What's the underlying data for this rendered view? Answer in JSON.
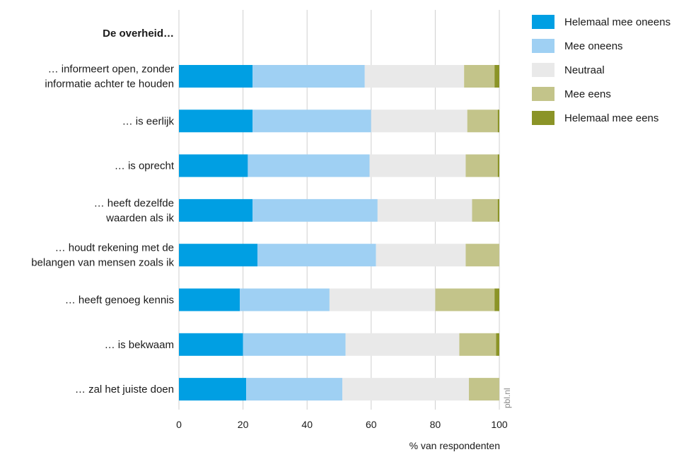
{
  "chart_data": {
    "type": "bar",
    "orientation": "horizontal",
    "stacked": true,
    "group_title": "De overheid…",
    "categories": [
      [
        "… informeert open, zonder",
        "informatie achter te houden"
      ],
      [
        "… is eerlijk"
      ],
      [
        "… is oprecht"
      ],
      [
        "… heeft dezelfde",
        "waarden als ik"
      ],
      [
        "… houdt rekening met de",
        "belangen van mensen zoals ik"
      ],
      [
        "… heeft genoeg kennis"
      ],
      [
        "… is bekwaam"
      ],
      [
        "… zal het juiste doen"
      ]
    ],
    "series": [
      {
        "name": "Helemaal mee oneens",
        "color": "#009fe3",
        "values": [
          23,
          23,
          21.5,
          23,
          24.5,
          19,
          20,
          21
        ]
      },
      {
        "name": "Mee oneens",
        "color": "#9fd0f3",
        "values": [
          35,
          37,
          38,
          39,
          37,
          28,
          32,
          30
        ]
      },
      {
        "name": "Neutraal",
        "color": "#e9e9e9",
        "values": [
          31,
          30,
          30,
          29.5,
          28,
          33,
          35.5,
          39.5
        ]
      },
      {
        "name": "Mee eens",
        "color": "#c3c48a",
        "values": [
          9.5,
          9.5,
          10,
          8,
          10.5,
          18.5,
          11.5,
          9.5
        ]
      },
      {
        "name": "Helemaal mee eens",
        "color": "#8b9427",
        "values": [
          1.5,
          0.5,
          0.5,
          0.5,
          0,
          1.5,
          1,
          0
        ]
      }
    ],
    "xlim": [
      0,
      100
    ],
    "xticks": [
      0,
      20,
      40,
      60,
      80,
      100
    ],
    "xlabel": "% van respondenten",
    "source": "pbl.nl",
    "grid": "vertical",
    "legend_position": "top-right"
  }
}
